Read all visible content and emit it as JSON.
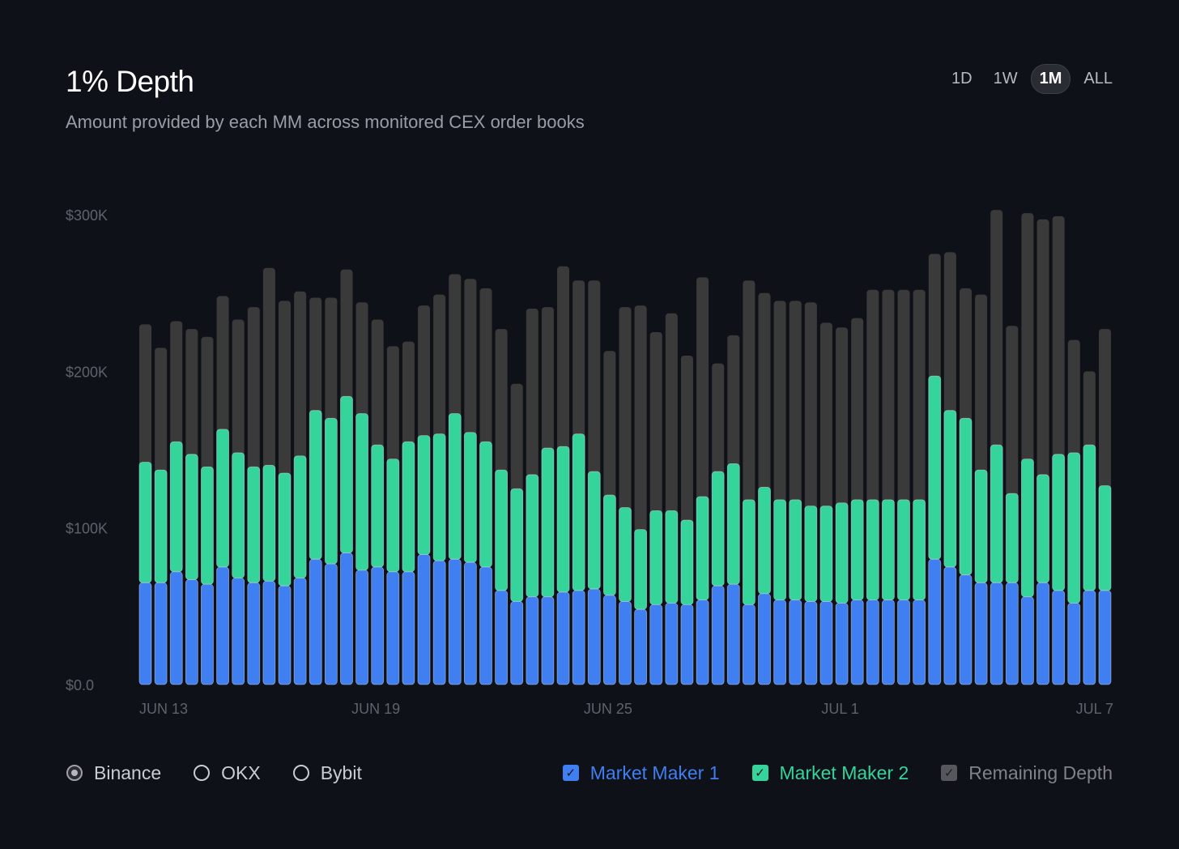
{
  "header": {
    "title": "1% Depth",
    "subtitle": "Amount provided by each MM across monitored CEX order books"
  },
  "range_tabs": [
    {
      "label": "1D",
      "active": false
    },
    {
      "label": "1W",
      "active": false
    },
    {
      "label": "1M",
      "active": true
    },
    {
      "label": "ALL",
      "active": false
    }
  ],
  "exchanges": [
    {
      "label": "Binance",
      "selected": true
    },
    {
      "label": "OKX",
      "selected": false
    },
    {
      "label": "Bybit",
      "selected": false
    }
  ],
  "legend": [
    {
      "label": "Market Maker 1",
      "color": "#3f7ff2",
      "checked": true
    },
    {
      "label": "Market Maker 2",
      "color": "#35d49b",
      "checked": true
    },
    {
      "label": "Remaining Depth",
      "color": "#3a3a3a",
      "checked": true
    }
  ],
  "colors": {
    "background": "#0f1118",
    "mm1": "#3f7ff2",
    "mm2": "#35d49b",
    "remaining": "#3a3a3a",
    "bar_stroke": "#d8dde6"
  },
  "chart_data": {
    "type": "bar",
    "stacked": true,
    "title": "1% Depth",
    "ylim": [
      0,
      300000
    ],
    "y_ticks": [
      {
        "value": 0,
        "label": "$0.0"
      },
      {
        "value": 100000,
        "label": "$100K"
      },
      {
        "value": 200000,
        "label": "$200K"
      },
      {
        "value": 300000,
        "label": "$300K"
      }
    ],
    "x_ticks": [
      {
        "index": 1,
        "label": "JUN 13"
      },
      {
        "index": 16,
        "label": "JUN 19"
      },
      {
        "index": 31,
        "label": "JUN 25"
      },
      {
        "index": 46,
        "label": "JUL 1"
      },
      {
        "index": 60,
        "label": "JUL 7"
      }
    ],
    "series": [
      {
        "name": "Market Maker 1",
        "values": [
          65000,
          65000,
          72000,
          67000,
          64000,
          75000,
          68000,
          65000,
          66000,
          63000,
          68000,
          80000,
          77000,
          84000,
          73000,
          75000,
          72000,
          72000,
          83000,
          79000,
          80000,
          78000,
          75000,
          60000,
          53000,
          56000,
          56000,
          59000,
          60000,
          61000,
          57000,
          53000,
          48000,
          51000,
          52000,
          51000,
          54000,
          63000,
          64000,
          51000,
          58000,
          54000,
          54000,
          53000,
          53000,
          52000,
          54000,
          54000,
          54000,
          54000,
          54000,
          80000,
          75000,
          70000,
          65000,
          65000,
          65000,
          56000,
          65000,
          60000,
          52000,
          60000,
          60000
        ]
      },
      {
        "name": "Market Maker 2",
        "values": [
          77000,
          72000,
          83000,
          80000,
          75000,
          88000,
          80000,
          74000,
          74000,
          72000,
          78000,
          95000,
          93000,
          100000,
          100000,
          78000,
          72000,
          83000,
          76000,
          81000,
          93000,
          83000,
          80000,
          77000,
          72000,
          78000,
          95000,
          93000,
          100000,
          75000,
          64000,
          60000,
          51000,
          60000,
          59000,
          54000,
          66000,
          73000,
          77000,
          67000,
          68000,
          64000,
          64000,
          61000,
          61000,
          64000,
          64000,
          64000,
          64000,
          64000,
          64000,
          117000,
          100000,
          100000,
          72000,
          88000,
          57000,
          88000,
          69000,
          87000,
          96000,
          93000,
          67000
        ]
      },
      {
        "name": "Remaining Depth",
        "values": [
          88000,
          78000,
          77000,
          80000,
          83000,
          85000,
          85000,
          102000,
          126000,
          110000,
          105000,
          72000,
          77000,
          81000,
          71000,
          80000,
          72000,
          64000,
          83000,
          89000,
          89000,
          98000,
          98000,
          90000,
          67000,
          106000,
          90000,
          115000,
          98000,
          122000,
          92000,
          128000,
          143000,
          114000,
          126000,
          105000,
          140000,
          69000,
          82000,
          140000,
          124000,
          127000,
          127000,
          130000,
          117000,
          112000,
          116000,
          134000,
          134000,
          134000,
          134000,
          78000,
          101000,
          83000,
          112000,
          150000,
          107000,
          157000,
          163000,
          152000,
          72000,
          47000,
          100000
        ]
      }
    ]
  }
}
